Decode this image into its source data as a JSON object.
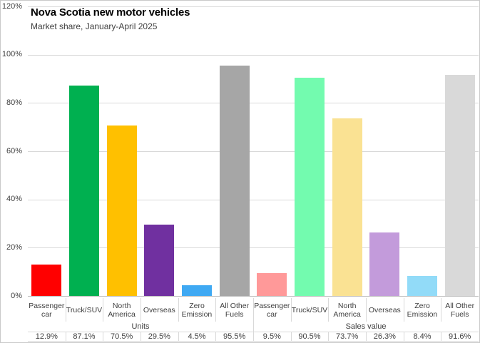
{
  "title": "Nova Scotia new motor vehicles",
  "subtitle": "Market share, January-April 2025",
  "y_axis": {
    "min": 0,
    "max": 120,
    "step": 20,
    "tick_labels": [
      "0%",
      "20%",
      "40%",
      "60%",
      "80%",
      "100%",
      "120%"
    ]
  },
  "chart_data": {
    "type": "bar",
    "title": "Nova Scotia new motor vehicles",
    "subtitle": "Market share, January-April 2025",
    "xlabel": "",
    "ylabel": "",
    "ylim": [
      0,
      120
    ],
    "grid": true,
    "legend": "none",
    "groups": [
      {
        "label": "Units",
        "categories": [
          "Passenger car",
          "Truck/SUV",
          "North America",
          "Overseas",
          "Zero Emission",
          "All Other Fuels"
        ],
        "values": [
          12.9,
          87.1,
          70.5,
          29.5,
          4.5,
          95.5
        ],
        "display_values": [
          "12.9%",
          "87.1%",
          "70.5%",
          "29.5%",
          "4.5%",
          "95.5%"
        ],
        "colors": [
          "#FF0000",
          "#00B050",
          "#FFC000",
          "#7030A0",
          "#3FA9F3",
          "#A6A6A6"
        ]
      },
      {
        "label": "Sales value",
        "categories": [
          "Passenger car",
          "Truck/SUV",
          "North America",
          "Overseas",
          "Zero Emission",
          "All Other Fuels"
        ],
        "values": [
          9.5,
          90.5,
          73.7,
          26.3,
          8.4,
          91.6
        ],
        "display_values": [
          "9.5%",
          "90.5%",
          "73.7%",
          "26.3%",
          "8.4%",
          "91.6%"
        ],
        "colors": [
          "#FF9999",
          "#73FBAF",
          "#FAE293",
          "#C39BDB",
          "#92DBF8",
          "#D9D9D9"
        ]
      }
    ]
  }
}
